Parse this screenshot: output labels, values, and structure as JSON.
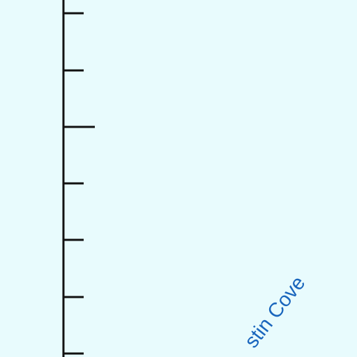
{
  "map": {
    "water_color": "#e8fbfd",
    "label_color": "#1a66bd",
    "line_color": "#111111",
    "labels": [
      {
        "text": "stin Cove"
      }
    ]
  }
}
